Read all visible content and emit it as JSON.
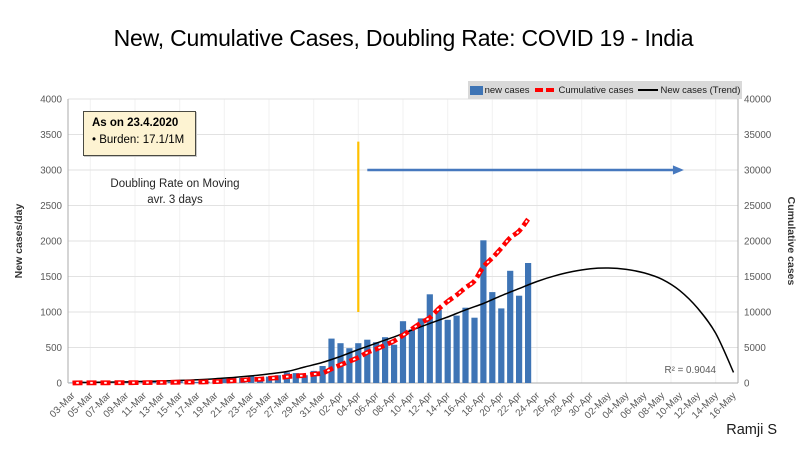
{
  "page": {
    "credit": "Ramji S"
  },
  "legend": {
    "background": "#D9D9D9",
    "items": [
      {
        "label": "new cases",
        "symbol": "bar"
      },
      {
        "label": "Cumulative cases",
        "symbol": "dash"
      },
      {
        "label": "New cases (Trend)",
        "symbol": "line"
      }
    ]
  },
  "annotation_box": {
    "title": "As on 23.4.2020",
    "body": "• Burden: 17.1/1M",
    "background": "#FDF3D2"
  },
  "doubling_note": {
    "line1": "Doubling Rate on Moving",
    "line2": "avr. 3 days"
  },
  "chart_data": {
    "type": "combo",
    "title": "New, Cumulative Cases, Doubling Rate: COVID 19 - India",
    "left_axis": {
      "label": "New cases/day",
      "min": 0,
      "max": 4000,
      "step": 500,
      "tick_color": "#595959"
    },
    "right_axis": {
      "label": "Cumulative cases",
      "min": 0,
      "max": 40000,
      "step": 5000,
      "tick_color": "#595959"
    },
    "x_total_days": 75,
    "x_tick_labels": [
      "03-Mar",
      "05-Mar",
      "07-Mar",
      "09-Mar",
      "11-Mar",
      "13-Mar",
      "15-Mar",
      "17-Mar",
      "19-Mar",
      "21-Mar",
      "23-Mar",
      "25-Mar",
      "27-Mar",
      "29-Mar",
      "31-Mar",
      "02-Apr",
      "04-Apr",
      "06-Apr",
      "08-Apr",
      "10-Apr",
      "12-Apr",
      "14-Apr",
      "16-Apr",
      "18-Apr",
      "20-Apr",
      "22-Apr",
      "24-Apr",
      "26-Apr",
      "28-Apr",
      "30-Apr",
      "02-May",
      "04-May",
      "06-May",
      "08-May",
      "10-May",
      "12-May",
      "14-May",
      "16-May"
    ],
    "dates": [
      "03-Mar",
      "04-Mar",
      "05-Mar",
      "06-Mar",
      "07-Mar",
      "08-Mar",
      "09-Mar",
      "10-Mar",
      "11-Mar",
      "12-Mar",
      "13-Mar",
      "14-Mar",
      "15-Mar",
      "16-Mar",
      "17-Mar",
      "18-Mar",
      "19-Mar",
      "20-Mar",
      "21-Mar",
      "22-Mar",
      "23-Mar",
      "24-Mar",
      "25-Mar",
      "26-Mar",
      "27-Mar",
      "28-Mar",
      "29-Mar",
      "30-Mar",
      "31-Mar",
      "01-Apr",
      "02-Apr",
      "03-Apr",
      "04-Apr",
      "05-Apr",
      "06-Apr",
      "07-Apr",
      "08-Apr",
      "09-Apr",
      "10-Apr",
      "11-Apr",
      "12-Apr",
      "13-Apr",
      "14-Apr",
      "15-Apr",
      "16-Apr",
      "17-Apr",
      "18-Apr",
      "19-Apr",
      "20-Apr",
      "21-Apr",
      "22-Apr",
      "23-Apr"
    ],
    "series": [
      {
        "name": "new cases",
        "type": "bar",
        "axis": "left",
        "color": "#3E74B5",
        "values": [
          5,
          20,
          10,
          8,
          5,
          10,
          15,
          15,
          10,
          15,
          10,
          15,
          25,
          15,
          15,
          20,
          30,
          60,
          75,
          70,
          100,
          70,
          90,
          110,
          150,
          140,
          110,
          170,
          240,
          625,
          560,
          490,
          560,
          610,
          575,
          645,
          540,
          870,
          755,
          910,
          1250,
          1030,
          890,
          950,
          1060,
          920,
          2010,
          1280,
          1050,
          1580,
          1230,
          1690
        ]
      },
      {
        "name": "Cumulative cases",
        "type": "dashed-line",
        "axis": "right",
        "color": "#FF0000",
        "values": [
          6,
          28,
          30,
          31,
          34,
          39,
          44,
          50,
          60,
          74,
          82,
          102,
          114,
          126,
          142,
          156,
          194,
          244,
          330,
          396,
          499,
          536,
          657,
          727,
          887,
          987,
          1071,
          1251,
          1397,
          1998,
          2543,
          3059,
          3588,
          4289,
          4778,
          5351,
          5916,
          6725,
          7598,
          8446,
          9205,
          10453,
          11487,
          12380,
          13430,
          14378,
          16365,
          17615,
          18985,
          20471,
          21393,
          23077
        ]
      },
      {
        "name": "New cases (Trend)",
        "type": "line",
        "axis": "left",
        "color": "#000000",
        "x": "x_tick_labels",
        "values": [
          5,
          8,
          12,
          16,
          22,
          28,
          36,
          46,
          60,
          78,
          100,
          128,
          162,
          225,
          290,
          375,
          470,
          560,
          650,
          745,
          840,
          930,
          1030,
          1120,
          1230,
          1330,
          1430,
          1510,
          1570,
          1610,
          1620,
          1600,
          1550,
          1460,
          1300,
          1050,
          700,
          150
        ]
      }
    ],
    "annotations": {
      "vertical_line": {
        "date": "04-Apr",
        "from": 1000,
        "to": 3400,
        "color": "#FFC000"
      },
      "arrow": {
        "from_date": "05-Apr",
        "to_date": "10-May",
        "at_value": 3000,
        "color": "#4678BE"
      },
      "r2_label": {
        "text": "R² = 0.9044",
        "color": "#595959"
      }
    },
    "grid": true,
    "legend_position": "top-right"
  }
}
